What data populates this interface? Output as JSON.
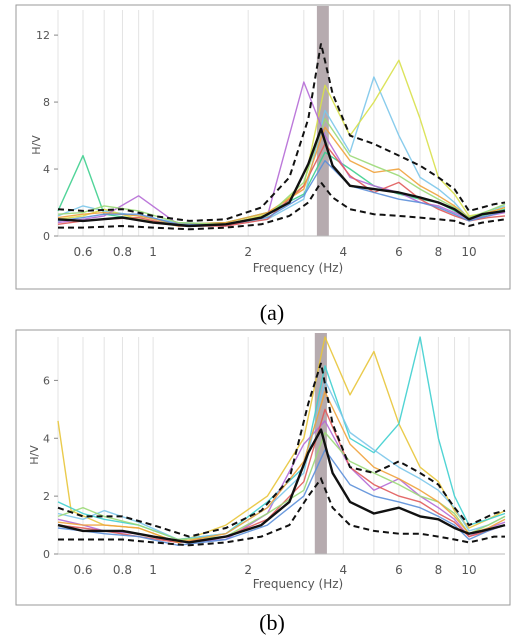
{
  "chart_data": [
    {
      "type": "line",
      "caption": "(a)",
      "xlabel": "Frequency (Hz)",
      "ylabel": "H/V",
      "xscale": "log",
      "xlim": [
        0.5,
        13
      ],
      "ylim": [
        0,
        13.5
      ],
      "x_ticks": [
        0.6,
        0.8,
        1,
        2,
        4,
        6,
        8,
        10
      ],
      "x_tick_labels": [
        "0.6",
        "0.8",
        "1",
        "2",
        "4",
        "6",
        "8",
        "10"
      ],
      "y_ticks": [
        0,
        4,
        8,
        12
      ],
      "y_tick_labels": [
        "0",
        "4",
        "8",
        "12"
      ],
      "peak_band": [
        3.3,
        3.6
      ],
      "grid": true,
      "legend": "none",
      "mean_curve": {
        "color": "#111111",
        "x": [
          0.5,
          0.6,
          0.8,
          1,
          1.3,
          1.7,
          2.2,
          2.7,
          3.1,
          3.4,
          3.7,
          4.2,
          5,
          6,
          7,
          8,
          9,
          10,
          11,
          12,
          13
        ],
        "y": [
          1.0,
          0.9,
          1.1,
          0.8,
          0.6,
          0.7,
          1.1,
          2.0,
          4.3,
          6.4,
          4.2,
          3.0,
          2.8,
          2.6,
          2.3,
          2.0,
          1.6,
          1.0,
          1.3,
          1.4,
          1.5
        ]
      },
      "std_curves": [
        {
          "color": "#111111",
          "x": [
            0.5,
            0.6,
            0.8,
            1,
            1.3,
            1.7,
            2.2,
            2.7,
            3.1,
            3.4,
            3.7,
            4.2,
            5,
            6,
            7,
            8,
            9,
            10,
            11,
            12,
            13
          ],
          "y": [
            1.6,
            1.5,
            1.6,
            1.2,
            0.9,
            1.0,
            1.7,
            3.5,
            7.0,
            11.5,
            8.5,
            6.0,
            5.5,
            4.8,
            4.2,
            3.5,
            2.8,
            1.5,
            1.7,
            1.9,
            2.0
          ]
        },
        {
          "color": "#111111",
          "x": [
            0.5,
            0.6,
            0.8,
            1,
            1.3,
            1.7,
            2.2,
            2.7,
            3.1,
            3.4,
            3.7,
            4.2,
            5,
            6,
            7,
            8,
            9,
            10,
            11,
            12,
            13
          ],
          "y": [
            0.5,
            0.5,
            0.6,
            0.5,
            0.4,
            0.5,
            0.7,
            1.2,
            2.0,
            3.2,
            2.3,
            1.6,
            1.3,
            1.2,
            1.1,
            1.0,
            0.9,
            0.6,
            0.8,
            0.9,
            1.0
          ]
        }
      ],
      "station_curves": [
        {
          "color": "#3ecf8e",
          "x": [
            0.5,
            0.6,
            0.7,
            0.9,
            1.2,
            1.7,
            2.3,
            3.0,
            3.5,
            4.2,
            5,
            6,
            7,
            8,
            9,
            10,
            11.5,
            13
          ],
          "y": [
            1.5,
            4.8,
            1.3,
            1.0,
            0.7,
            0.8,
            1.4,
            2.5,
            5.0,
            4.0,
            3.0,
            2.5,
            2.2,
            2.0,
            1.5,
            1.0,
            1.3,
            1.6
          ]
        },
        {
          "color": "#7cc6ea",
          "x": [
            0.5,
            0.6,
            0.7,
            0.9,
            1.2,
            1.7,
            2.3,
            3.0,
            3.5,
            4.2,
            5,
            6,
            7,
            8,
            9,
            10,
            11.5,
            13
          ],
          "y": [
            1.2,
            1.8,
            1.5,
            1.2,
            0.8,
            0.7,
            1.0,
            2.2,
            7.5,
            5.0,
            9.5,
            6.0,
            3.5,
            2.8,
            2.0,
            1.0,
            1.5,
            1.8
          ]
        },
        {
          "color": "#d8e04a",
          "x": [
            0.5,
            0.6,
            0.7,
            0.9,
            1.2,
            1.7,
            2.3,
            3.0,
            3.5,
            4.2,
            5,
            6,
            7,
            8,
            9,
            10,
            11.5,
            13
          ],
          "y": [
            1.0,
            1.2,
            1.6,
            1.0,
            0.6,
            0.7,
            1.3,
            3.0,
            9.0,
            6.0,
            8.0,
            10.5,
            7.0,
            3.5,
            2.5,
            1.2,
            1.4,
            1.7
          ]
        },
        {
          "color": "#b56ad6",
          "x": [
            0.5,
            0.6,
            0.7,
            0.9,
            1.2,
            1.7,
            2.3,
            3.0,
            3.5,
            4.2,
            5,
            6,
            7,
            8,
            9,
            10,
            11.5,
            13
          ],
          "y": [
            0.8,
            1.0,
            1.2,
            2.4,
            0.7,
            0.6,
            1.2,
            9.2,
            6.0,
            3.5,
            3.0,
            2.6,
            2.0,
            1.8,
            1.4,
            1.0,
            1.2,
            1.4
          ]
        },
        {
          "color": "#e05a5a",
          "x": [
            0.5,
            0.6,
            0.7,
            0.9,
            1.2,
            1.7,
            2.3,
            3.0,
            3.5,
            4.2,
            5,
            6,
            7,
            8,
            9,
            10,
            11.5,
            13
          ],
          "y": [
            0.7,
            0.9,
            1.0,
            1.1,
            0.6,
            0.6,
            1.0,
            3.0,
            5.5,
            3.6,
            2.6,
            3.2,
            2.2,
            1.6,
            1.2,
            0.9,
            1.1,
            1.2
          ]
        },
        {
          "color": "#f0a23c",
          "x": [
            0.5,
            0.6,
            0.7,
            0.9,
            1.2,
            1.7,
            2.3,
            3.0,
            3.5,
            4.2,
            5,
            6,
            7,
            8,
            9,
            10,
            11.5,
            13
          ],
          "y": [
            1.1,
            1.3,
            1.4,
            1.2,
            0.7,
            0.8,
            1.4,
            2.8,
            6.5,
            4.5,
            3.8,
            4.0,
            3.0,
            2.4,
            1.8,
            1.1,
            1.4,
            1.7
          ]
        },
        {
          "color": "#5b8fd9",
          "x": [
            0.5,
            0.6,
            0.7,
            0.9,
            1.2,
            1.7,
            2.3,
            3.0,
            3.5,
            4.2,
            5,
            6,
            7,
            8,
            9,
            10,
            11.5,
            13
          ],
          "y": [
            0.9,
            1.1,
            1.3,
            1.3,
            0.7,
            0.7,
            1.1,
            2.4,
            4.5,
            3.0,
            2.6,
            2.2,
            2.0,
            1.7,
            1.3,
            0.9,
            1.2,
            1.5
          ]
        },
        {
          "color": "#9bd977",
          "x": [
            0.5,
            0.6,
            0.7,
            0.9,
            1.2,
            1.7,
            2.3,
            3.0,
            3.5,
            4.2,
            5,
            6,
            7,
            8,
            9,
            10,
            11.5,
            13
          ],
          "y": [
            1.3,
            1.4,
            1.8,
            1.5,
            0.8,
            0.7,
            1.2,
            3.2,
            7.0,
            4.8,
            4.2,
            3.6,
            2.8,
            2.2,
            1.7,
            1.1,
            1.5,
            1.9
          ]
        }
      ]
    },
    {
      "type": "line",
      "caption": "(b)",
      "xlabel": "Frequency (Hz)",
      "ylabel": "H/V",
      "xscale": "log",
      "xlim": [
        0.5,
        13
      ],
      "ylim": [
        0,
        7.5
      ],
      "x_ticks": [
        0.6,
        0.8,
        1,
        2,
        4,
        6,
        8,
        10
      ],
      "x_tick_labels": [
        "0.6",
        "0.8",
        "1",
        "2",
        "4",
        "6",
        "8",
        "10"
      ],
      "y_ticks": [
        0,
        2,
        4,
        6
      ],
      "y_tick_labels": [
        "0",
        "2",
        "4",
        "6"
      ],
      "peak_band": [
        3.25,
        3.55
      ],
      "grid": true,
      "legend": "none",
      "mean_curve": {
        "color": "#111111",
        "x": [
          0.5,
          0.6,
          0.8,
          1,
          1.3,
          1.7,
          2.2,
          2.7,
          3.1,
          3.4,
          3.7,
          4.2,
          5,
          6,
          7,
          8,
          9,
          10,
          11,
          12,
          13
        ],
        "y": [
          1.0,
          0.8,
          0.8,
          0.6,
          0.4,
          0.6,
          1.0,
          1.8,
          3.5,
          4.3,
          2.8,
          1.8,
          1.4,
          1.6,
          1.3,
          1.2,
          0.9,
          0.7,
          0.8,
          0.9,
          1.0
        ]
      },
      "std_curves": [
        {
          "color": "#111111",
          "x": [
            0.5,
            0.6,
            0.8,
            1,
            1.3,
            1.7,
            2.2,
            2.7,
            3.1,
            3.4,
            3.7,
            4.2,
            5,
            6,
            7,
            8,
            9,
            10,
            11,
            12,
            13
          ],
          "y": [
            1.6,
            1.3,
            1.3,
            1.0,
            0.6,
            0.9,
            1.5,
            2.6,
            5.2,
            6.6,
            4.5,
            3.0,
            2.8,
            3.2,
            2.8,
            2.4,
            1.6,
            1.0,
            1.2,
            1.4,
            1.5
          ]
        },
        {
          "color": "#111111",
          "x": [
            0.5,
            0.6,
            0.8,
            1,
            1.3,
            1.7,
            2.2,
            2.7,
            3.1,
            3.4,
            3.7,
            4.2,
            5,
            6,
            7,
            8,
            9,
            10,
            11,
            12,
            13
          ],
          "y": [
            0.5,
            0.5,
            0.5,
            0.4,
            0.3,
            0.4,
            0.6,
            1.0,
            2.0,
            2.6,
            1.6,
            1.0,
            0.8,
            0.7,
            0.7,
            0.6,
            0.5,
            0.4,
            0.5,
            0.6,
            0.6
          ]
        }
      ],
      "station_curves": [
        {
          "color": "#e8c53a",
          "x": [
            0.5,
            0.55,
            0.7,
            0.9,
            1.2,
            1.7,
            2.3,
            3.0,
            3.5,
            4.2,
            5,
            6,
            7,
            8,
            9,
            10,
            11.5,
            13
          ],
          "y": [
            4.6,
            1.5,
            1.0,
            0.9,
            0.4,
            1.0,
            2.0,
            4.0,
            7.5,
            5.5,
            7.0,
            4.5,
            3.0,
            2.5,
            1.5,
            0.9,
            1.2,
            1.5
          ]
        },
        {
          "color": "#3ecfcf",
          "x": [
            0.5,
            0.6,
            0.7,
            0.9,
            1.2,
            1.7,
            2.3,
            3.0,
            3.5,
            4.2,
            5,
            6,
            7,
            8,
            9,
            10,
            11.5,
            13
          ],
          "y": [
            1.8,
            1.4,
            1.2,
            1.0,
            0.5,
            0.7,
            1.8,
            3.0,
            6.5,
            4.0,
            3.5,
            4.5,
            7.5,
            4.0,
            2.0,
            1.0,
            1.2,
            1.4
          ]
        },
        {
          "color": "#b56ad6",
          "x": [
            0.5,
            0.6,
            0.7,
            0.9,
            1.2,
            1.7,
            2.3,
            3.0,
            3.5,
            4.2,
            5,
            6,
            7,
            8,
            9,
            10,
            11.5,
            13
          ],
          "y": [
            1.2,
            1.0,
            0.8,
            0.7,
            0.4,
            0.5,
            1.4,
            3.8,
            4.6,
            3.0,
            2.2,
            2.6,
            2.0,
            1.6,
            1.2,
            0.6,
            0.9,
            1.1
          ]
        },
        {
          "color": "#e05a5a",
          "x": [
            0.5,
            0.6,
            0.7,
            0.9,
            1.2,
            1.7,
            2.3,
            3.0,
            3.5,
            4.2,
            5,
            6,
            7,
            8,
            9,
            10,
            11.5,
            13
          ],
          "y": [
            1.0,
            0.9,
            0.8,
            0.6,
            0.4,
            0.6,
            1.2,
            2.5,
            5.0,
            3.0,
            2.4,
            2.0,
            1.8,
            1.4,
            1.1,
            0.6,
            0.8,
            1.0
          ]
        },
        {
          "color": "#7cc6ea",
          "x": [
            0.5,
            0.6,
            0.7,
            0.9,
            1.2,
            1.7,
            2.3,
            3.0,
            3.5,
            4.2,
            5,
            6,
            7,
            8,
            9,
            10,
            11.5,
            13
          ],
          "y": [
            1.4,
            1.2,
            1.5,
            1.1,
            0.5,
            0.7,
            1.6,
            2.8,
            6.0,
            4.2,
            3.6,
            3.0,
            2.6,
            2.2,
            1.6,
            0.8,
            1.0,
            1.3
          ]
        },
        {
          "color": "#9bd977",
          "x": [
            0.5,
            0.6,
            0.7,
            0.9,
            1.2,
            1.7,
            2.3,
            3.0,
            3.5,
            4.2,
            5,
            6,
            7,
            8,
            9,
            10,
            11.5,
            13
          ],
          "y": [
            1.3,
            1.6,
            1.3,
            1.0,
            0.5,
            0.6,
            1.4,
            2.2,
            4.2,
            3.2,
            2.8,
            2.4,
            2.0,
            1.8,
            1.4,
            0.7,
            1.0,
            1.3
          ]
        },
        {
          "color": "#5b8fd9",
          "x": [
            0.5,
            0.6,
            0.7,
            0.9,
            1.2,
            1.7,
            2.3,
            3.0,
            3.5,
            4.2,
            5,
            6,
            7,
            8,
            9,
            10,
            11.5,
            13
          ],
          "y": [
            0.9,
            0.8,
            0.7,
            0.6,
            0.3,
            0.5,
            1.0,
            2.0,
            3.6,
            2.4,
            2.0,
            1.8,
            1.6,
            1.3,
            1.0,
            0.5,
            0.8,
            1.0
          ]
        },
        {
          "color": "#f0a23c",
          "x": [
            0.5,
            0.6,
            0.7,
            0.9,
            1.2,
            1.7,
            2.3,
            3.0,
            3.5,
            4.2,
            5,
            6,
            7,
            8,
            9,
            10,
            11.5,
            13
          ],
          "y": [
            1.1,
            1.0,
            1.0,
            0.9,
            0.4,
            0.7,
            1.6,
            3.2,
            5.6,
            3.8,
            3.0,
            2.6,
            2.2,
            1.8,
            1.3,
            0.7,
            0.9,
            1.2
          ]
        }
      ]
    }
  ]
}
